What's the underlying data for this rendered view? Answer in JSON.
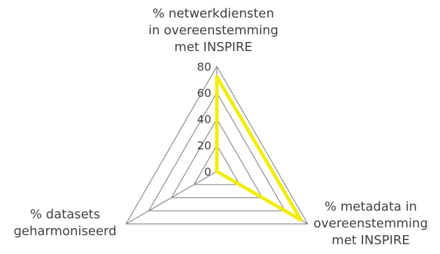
{
  "chart_data": {
    "type": "radar",
    "title": "",
    "axes": [
      {
        "label_lines": [
          "% netwerkdiensten",
          "in overeenstemming",
          "met INSPIRE"
        ]
      },
      {
        "label_lines": [
          "% metadata in",
          "overeenstemming",
          "met INSPIRE"
        ]
      },
      {
        "label_lines": [
          "% datasets",
          "geharmoniseerd"
        ]
      }
    ],
    "series": [
      {
        "values": [
          72,
          74,
          0
        ]
      }
    ],
    "range": [
      0,
      80
    ],
    "ticks": [
      "0",
      "20",
      "40",
      "60",
      "80"
    ],
    "tick_values": [
      0,
      20,
      40,
      60,
      80
    ],
    "grid": true,
    "legend": "none",
    "colors": {
      "series": "#f2ec0a",
      "grid": "#888888",
      "tick_text": "#404040"
    }
  }
}
